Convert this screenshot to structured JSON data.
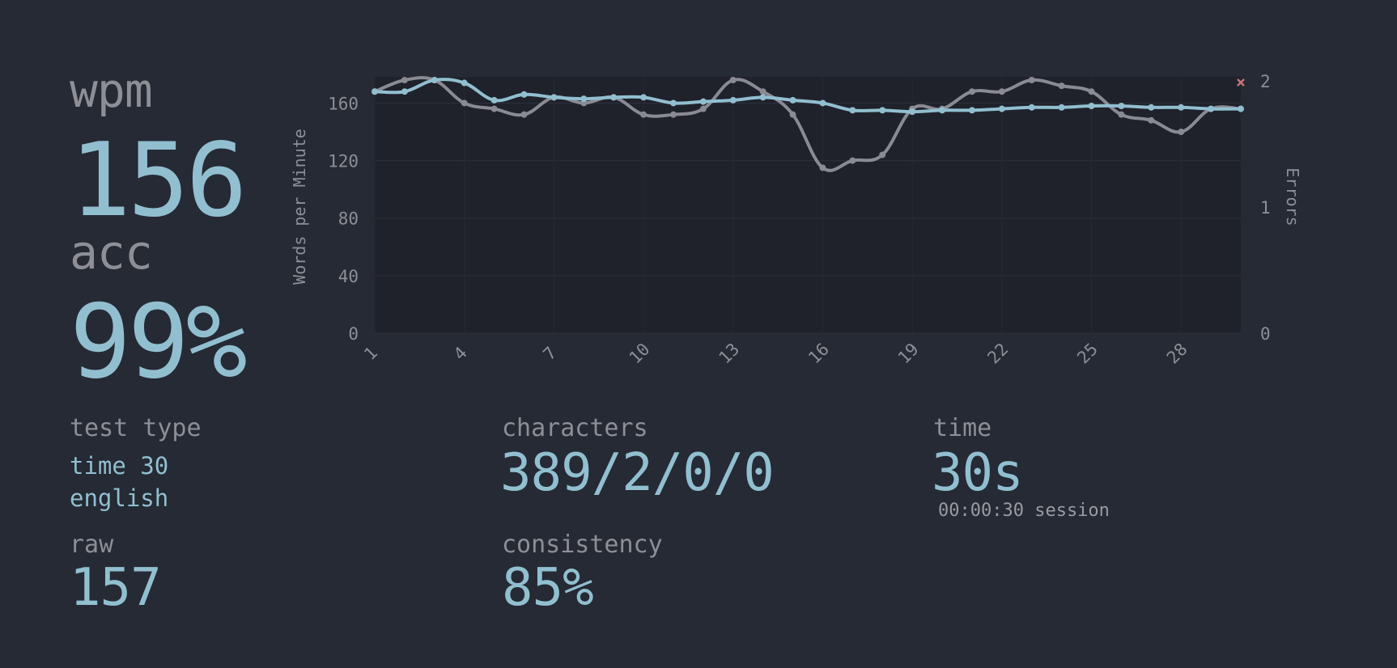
{
  "stats": {
    "wpm_label": "wpm",
    "wpm_value": "156",
    "acc_label": "acc",
    "acc_value": "99%",
    "test_type_label": "test type",
    "test_type_line1": "time 30",
    "test_type_line2": "english",
    "raw_label": "raw",
    "raw_value": "157",
    "characters_label": "characters",
    "characters_value": "389/2/0/0",
    "consistency_label": "consistency",
    "consistency_value": "85%",
    "time_label": "time",
    "time_value": "30s",
    "session_note": "00:00:30 session"
  },
  "colors": {
    "background": "#252a34",
    "accent": "#91bfd0",
    "sub": "#8e8e96",
    "raw_line": "#8a8a93",
    "error": "#c6757a"
  },
  "chart_data": {
    "type": "line",
    "ylabel": "Words per Minute",
    "y2label": "Errors",
    "ylim": [
      0,
      176
    ],
    "y2lim": [
      0,
      2
    ],
    "yticks": [
      0,
      40,
      80,
      120,
      160
    ],
    "y2ticks": [
      0,
      1,
      2
    ],
    "xticks": [
      1,
      4,
      7,
      10,
      13,
      16,
      19,
      22,
      25,
      28
    ],
    "x": [
      1,
      2,
      3,
      4,
      5,
      6,
      7,
      8,
      9,
      10,
      11,
      12,
      13,
      14,
      15,
      16,
      17,
      18,
      19,
      20,
      21,
      22,
      23,
      24,
      25,
      26,
      27,
      28,
      29,
      30
    ],
    "series": [
      {
        "role": "raw",
        "values": [
          168,
          176,
          176,
          160,
          156,
          152,
          164,
          160,
          164,
          152,
          152,
          156,
          176,
          168,
          152,
          115,
          120,
          124,
          156,
          156,
          168,
          168,
          176,
          172,
          168,
          152,
          148,
          140,
          156,
          156
        ]
      },
      {
        "role": "wpm",
        "values": [
          168,
          168,
          176,
          174,
          162,
          166,
          164,
          163,
          164,
          164,
          160,
          161,
          162,
          164,
          162,
          160,
          155,
          155,
          154,
          155,
          155,
          156,
          157,
          157,
          158,
          158,
          157,
          157,
          156,
          156
        ]
      }
    ],
    "errors": [
      {
        "x": 30,
        "value": 2
      }
    ],
    "grid": true
  }
}
